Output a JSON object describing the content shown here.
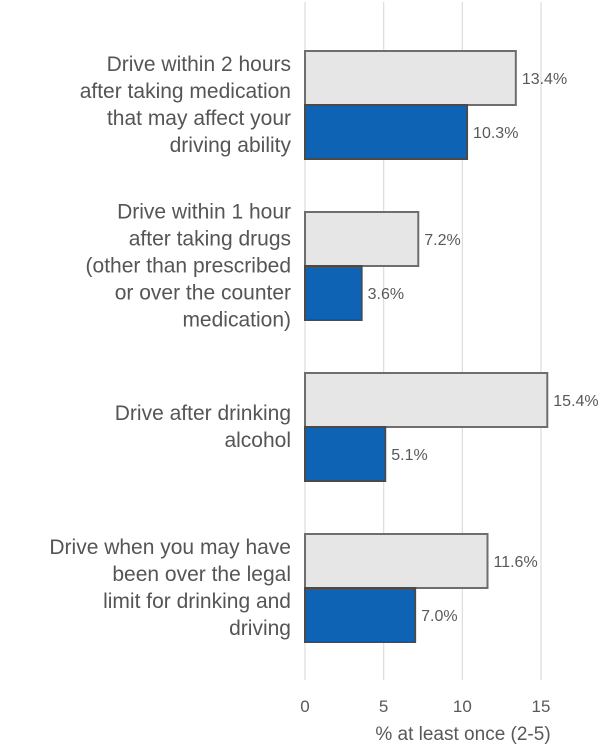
{
  "chart_data": {
    "type": "bar",
    "orientation": "horizontal",
    "categories": [
      [
        "Drive within 2 hours",
        "after taking medication",
        "that may affect your",
        "driving ability"
      ],
      [
        "Drive within 1 hour",
        "after taking drugs",
        "(other than prescribed",
        "or over the counter",
        "medication)"
      ],
      [
        "Drive after drinking",
        "alcohol"
      ],
      [
        "Drive when you may have",
        "been over the legal",
        "limit for drinking and",
        "driving"
      ]
    ],
    "series": [
      {
        "values": [
          13.4,
          7.2,
          15.4,
          11.6
        ],
        "labels": [
          "13.4%",
          "7.2%",
          "15.4%",
          "11.6%"
        ],
        "color": "#e6e6e6",
        "stroke": "#6e6e6e"
      },
      {
        "values": [
          10.3,
          3.6,
          5.1,
          7.0
        ],
        "labels": [
          "10.3%",
          "3.6%",
          "5.1%",
          "7.0%"
        ],
        "color": "#0f63b5",
        "stroke": "#4a4a4a"
      }
    ],
    "xlim": [
      0,
      15
    ],
    "xticks": [
      0,
      5,
      10,
      15
    ],
    "xlabel": "% at least once (2-5)",
    "grid": true
  }
}
